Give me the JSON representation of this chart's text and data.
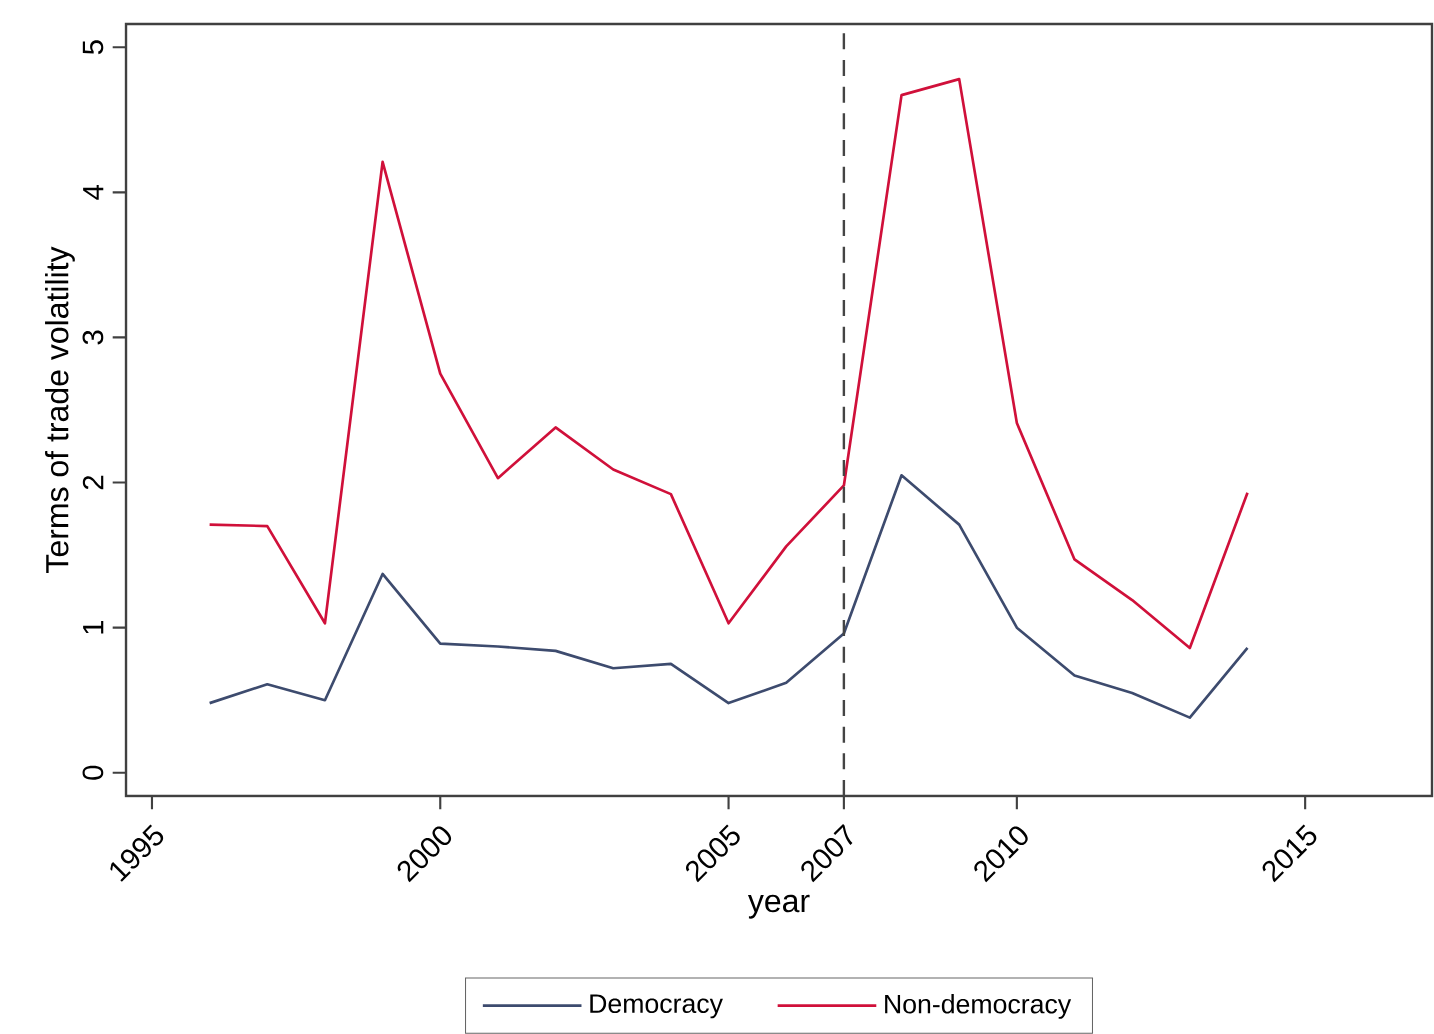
{
  "chart_data": {
    "type": "line",
    "xlabel": "year",
    "ylabel": "Terms of trade volatility",
    "x": [
      1996,
      1997,
      1998,
      1999,
      2000,
      2001,
      2002,
      2003,
      2004,
      2005,
      2006,
      2007,
      2008,
      2009,
      2010,
      2011,
      2012,
      2013,
      2014
    ],
    "series": [
      {
        "name": "Democracy",
        "color": "#3d4b6e",
        "values": [
          0.48,
          0.61,
          0.5,
          1.37,
          0.89,
          0.87,
          0.84,
          0.72,
          0.75,
          0.48,
          0.62,
          0.96,
          2.05,
          1.71,
          1.0,
          0.67,
          0.55,
          0.38,
          0.86
        ]
      },
      {
        "name": "Non-democracy",
        "color": "#d0103a",
        "values": [
          1.71,
          1.7,
          1.03,
          4.21,
          2.75,
          2.03,
          2.38,
          2.09,
          1.92,
          1.03,
          1.56,
          1.98,
          4.67,
          4.78,
          2.41,
          1.47,
          1.19,
          0.86,
          1.93
        ]
      }
    ],
    "xlim": [
      1994.55,
      2017.2
    ],
    "ylim": [
      -0.16,
      5.16
    ],
    "xticks": [
      1995,
      2000,
      2005,
      2007,
      2010,
      2015
    ],
    "yticks": [
      0,
      1,
      2,
      3,
      4,
      5
    ],
    "ref_lines": [
      {
        "axis": "x",
        "value": 2007,
        "line_style": "dashed",
        "color": "#444444"
      }
    ],
    "grid": false,
    "legend": "bottom",
    "marker": "none",
    "line_style": "solid"
  }
}
